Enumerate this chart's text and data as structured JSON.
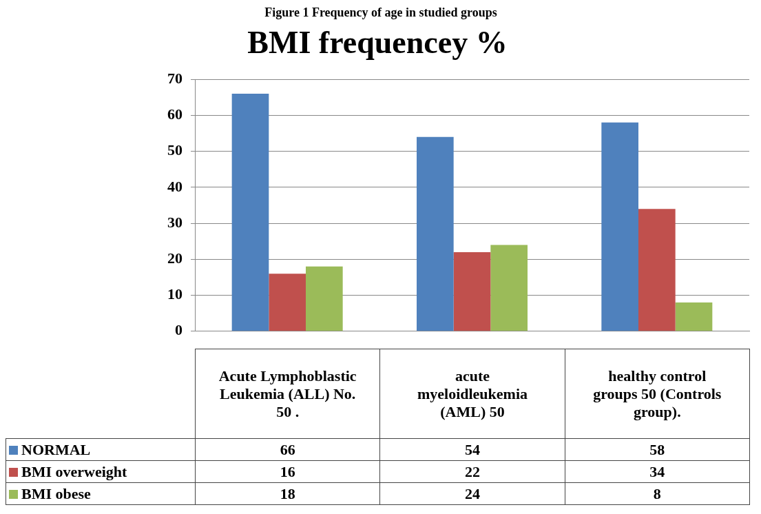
{
  "chart_data": {
    "type": "bar",
    "title": "BMI frequencey %",
    "annotations": [
      "Figure 1 Frequency of age in studied groups"
    ],
    "categories": [
      "Acute Lymphoblastic Leukemia (ALL)  No. 50 .",
      "acute myeloidleukemia (AML) 50",
      "healthy control groups 50 (Controls group)."
    ],
    "series": [
      {
        "name": "NORMAL",
        "color": "#4f81bd",
        "values": [
          66,
          54,
          58
        ]
      },
      {
        "name": "BMI overweight",
        "color": "#c0504d",
        "values": [
          16,
          22,
          34
        ]
      },
      {
        "name": "BMI obese",
        "color": "#9bbb59",
        "values": [
          18,
          24,
          8
        ]
      }
    ],
    "ylim": [
      0,
      70
    ],
    "yticks": [
      0,
      10,
      20,
      30,
      40,
      50,
      60,
      70
    ],
    "grid": "y",
    "legend": "bottom",
    "data_labels": true
  }
}
